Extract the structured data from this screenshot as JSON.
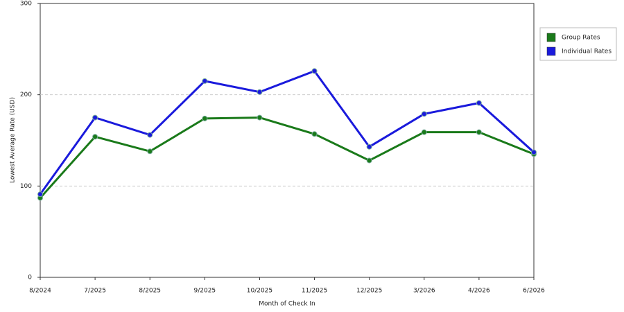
{
  "chart_data": {
    "type": "line",
    "x_label": "Month of Check In",
    "y_label": "Lowest Average Rate (USD)",
    "categories": [
      "8/2024",
      "7/2025",
      "8/2025",
      "9/2025",
      "10/2025",
      "11/2025",
      "12/2025",
      "3/2026",
      "4/2026",
      "6/2026"
    ],
    "series": [
      {
        "name": "Group Rates",
        "color": "#1a7a1a",
        "values": [
          87,
          154,
          138,
          174,
          175,
          157,
          128,
          159,
          159,
          135
        ]
      },
      {
        "name": "Individual Rates",
        "color": "#1a1adc",
        "values": [
          91,
          175,
          156,
          215,
          203,
          226,
          143,
          179,
          191,
          137
        ]
      }
    ],
    "ylim": [
      0,
      300
    ],
    "yticks": [
      0,
      100,
      200,
      300
    ],
    "grid": true,
    "legend": "right"
  }
}
